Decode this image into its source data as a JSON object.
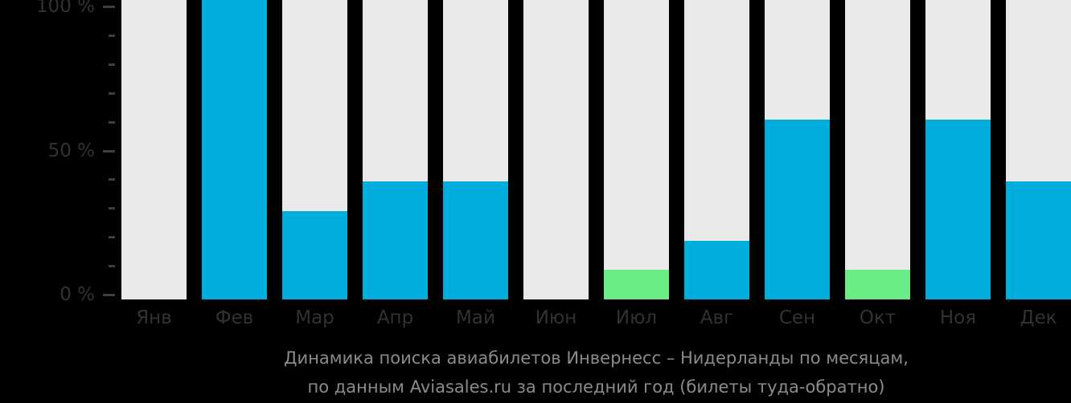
{
  "chart_data": {
    "type": "bar",
    "title": "Динамика поиска авиабилетов Инвернесс – Нидерланды по месяцам,",
    "subtitle": "по данным Aviasales.ru за последний год (билеты туда-обратно)",
    "categories": [
      "Янв",
      "Фев",
      "Мар",
      "Апр",
      "Май",
      "Июн",
      "Июл",
      "Авг",
      "Сен",
      "Окт",
      "Ноя",
      "Дек"
    ],
    "values": [
      0,
      100,
      30,
      40,
      40,
      0,
      10,
      20,
      61,
      10,
      61,
      40
    ],
    "unit": "%",
    "highlight_categories": [
      "Июл",
      "Окт"
    ],
    "ylim": [
      0,
      100
    ],
    "y_major_ticks": [
      {
        "label": "100 %",
        "value": 100
      },
      {
        "label": "50 %",
        "value": 50
      },
      {
        "label": "0 %",
        "value": 0
      }
    ],
    "y_minor_tick_step_pct": 10,
    "grid": false,
    "legend_position": "none"
  },
  "colors": {
    "background": "#000000",
    "track_bar": "#e9e9e9",
    "value_bar": "#00aedd",
    "highlight_bar": "#6aed86",
    "axis_label": "#323232",
    "tick_mark": "#3f3f3f",
    "title_text": "#8b8b8b"
  }
}
